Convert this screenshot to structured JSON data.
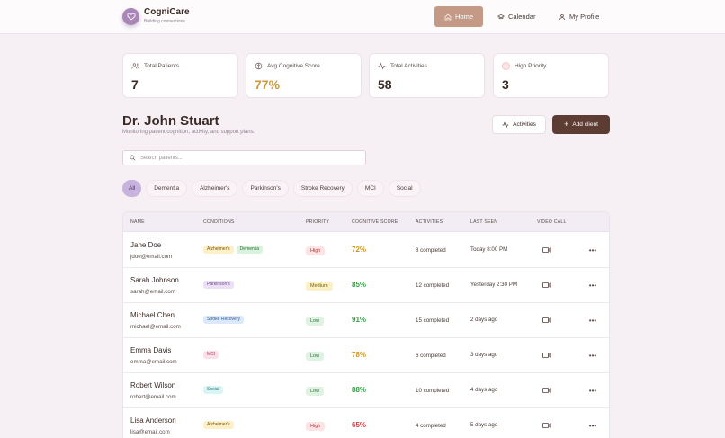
{
  "brand": {
    "name": "CogniCare",
    "tagline": "Building connections"
  },
  "nav": {
    "home": "Home",
    "calendar": "Calendar",
    "profile": "My Profile"
  },
  "stats": [
    {
      "label": "Total Patients",
      "value": "7",
      "icon": "users-icon"
    },
    {
      "label": "Avg Cognitive Score",
      "value": "77%",
      "icon": "brain-icon"
    },
    {
      "label": "Total Activities",
      "value": "58",
      "icon": "activity-icon"
    },
    {
      "label": "High Priority",
      "value": "3",
      "icon": "alert-dot-icon"
    }
  ],
  "header": {
    "doctor": "Dr. John Stuart",
    "subtitle": "Monitoring patient cognition, activity, and support plans.",
    "activities_btn": "Activities",
    "add_btn": "Add client"
  },
  "search": {
    "placeholder": "Search patients...",
    "value": ""
  },
  "filters": [
    "All",
    "Dementia",
    "Alzheimer's",
    "Parkinson's",
    "Stroke Recovery",
    "MCI",
    "Social"
  ],
  "table": {
    "columns": [
      "NAME",
      "CONDITIONS",
      "PRIORITY",
      "COGNITIVE SCORE",
      "ACTIVITIES",
      "LAST SEEN",
      "VIDEO CALL"
    ],
    "rows": [
      {
        "name": "Jane Doe",
        "email": "jdoe@email.com",
        "conditions": [
          "Alzheimer's",
          "Dementia"
        ],
        "priority": "High",
        "score": "72%",
        "activities": "8 completed",
        "last_seen": "Today 8:00 PM"
      },
      {
        "name": "Sarah Johnson",
        "email": "sarah@email.com",
        "conditions": [
          "Parkinson's"
        ],
        "priority": "Medium",
        "score": "85%",
        "activities": "12 completed",
        "last_seen": "Yesterday 2:30 PM"
      },
      {
        "name": "Michael Chen",
        "email": "michael@email.com",
        "conditions": [
          "Stroke Recovery"
        ],
        "priority": "Low",
        "score": "91%",
        "activities": "15 completed",
        "last_seen": "2 days ago"
      },
      {
        "name": "Emma Davis",
        "email": "emma@email.com",
        "conditions": [
          "MCI"
        ],
        "priority": "Low",
        "score": "78%",
        "activities": "6 completed",
        "last_seen": "3 days ago"
      },
      {
        "name": "Robert Wilson",
        "email": "robert@email.com",
        "conditions": [
          "Social"
        ],
        "priority": "Low",
        "score": "88%",
        "activities": "10 completed",
        "last_seen": "4 days ago"
      },
      {
        "name": "Lisa Anderson",
        "email": "lisa@email.com",
        "conditions": [
          "Alzheimer's"
        ],
        "priority": "High",
        "score": "65%",
        "activities": "4 completed",
        "last_seen": "5 days ago"
      }
    ]
  },
  "colors": {
    "accent": "#c49a86",
    "primary_dark": "#5d3d33",
    "filter_active": "#c7b3de",
    "score_green": "#3f9a4f",
    "score_amber": "#c8952e",
    "score_red": "#c84545"
  }
}
